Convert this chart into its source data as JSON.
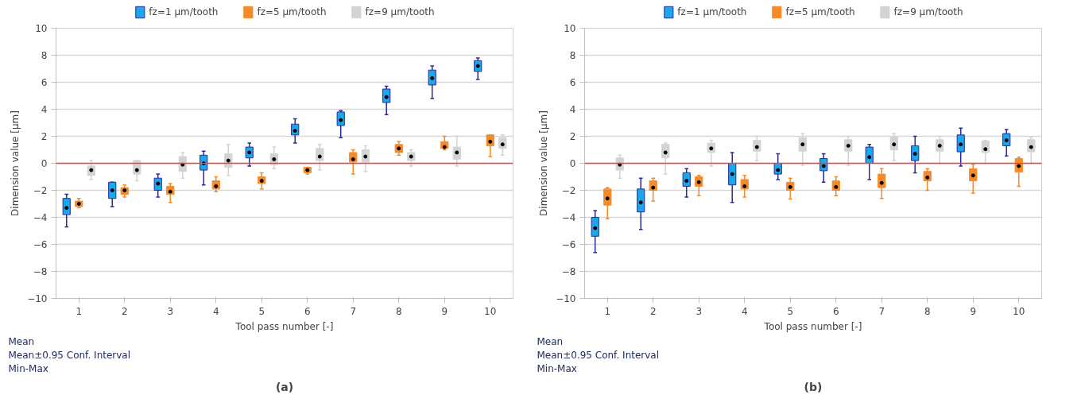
{
  "chart_data": [
    {
      "type": "box",
      "title": "(a)",
      "xlabel": "Tool pass number [-]",
      "ylabel": "Dimension value [µm]",
      "categories": [
        "1",
        "2",
        "3",
        "4",
        "5",
        "6",
        "7",
        "8",
        "9",
        "10"
      ],
      "ylim": [
        -10,
        10
      ],
      "yticks": [
        -10,
        -8,
        -6,
        -4,
        -2,
        0,
        2,
        4,
        6,
        8,
        10
      ],
      "grid": "y",
      "legend": "top",
      "ref_lines": [
        {
          "axis": "y",
          "value": 0,
          "color": "#ff4040"
        }
      ],
      "annotations": [
        "Mean",
        "Mean±0.95 Conf. Interval",
        "Min-Max"
      ],
      "series": [
        {
          "name": "fz=1 µm/tooth",
          "color": "#1aa7ec",
          "boxes": [
            {
              "low": -4.7,
              "q1": -3.8,
              "median": -3.3,
              "q3": -2.6,
              "high": -2.3
            },
            {
              "low": -3.2,
              "q1": -2.6,
              "median": -2.0,
              "q3": -1.4,
              "high": -1.4
            },
            {
              "low": -2.5,
              "q1": -2.0,
              "median": -1.5,
              "q3": -1.1,
              "high": -0.8
            },
            {
              "low": -1.6,
              "q1": -0.5,
              "median": 0,
              "q3": 0.6,
              "high": 0.9
            },
            {
              "low": -0.2,
              "q1": 0.4,
              "median": 0.8,
              "q3": 1.2,
              "high": 1.5
            },
            {
              "low": 1.5,
              "q1": 2.1,
              "median": 2.4,
              "q3": 2.9,
              "high": 3.3
            },
            {
              "low": 1.9,
              "q1": 2.8,
              "median": 3.2,
              "q3": 3.8,
              "high": 3.9
            },
            {
              "low": 3.6,
              "q1": 4.5,
              "median": 4.9,
              "q3": 5.5,
              "high": 5.7
            },
            {
              "low": 4.8,
              "q1": 5.8,
              "median": 6.3,
              "q3": 6.9,
              "high": 7.2
            },
            {
              "low": 6.2,
              "q1": 6.8,
              "median": 7.2,
              "q3": 7.6,
              "high": 7.8
            }
          ]
        },
        {
          "name": "fz=5 µm/tooth",
          "color": "#f58a2a",
          "boxes": [
            {
              "low": -3.3,
              "q1": -3.2,
              "median": -3.0,
              "q3": -2.8,
              "high": -2.6
            },
            {
              "low": -2.5,
              "q1": -2.3,
              "median": -2.0,
              "q3": -1.8,
              "high": -1.6
            },
            {
              "low": -2.9,
              "q1": -2.3,
              "median": -2.1,
              "q3": -1.7,
              "high": -1.5
            },
            {
              "low": -2.1,
              "q1": -1.9,
              "median": -1.7,
              "q3": -1.3,
              "high": -1.0
            },
            {
              "low": -1.9,
              "q1": -1.5,
              "median": -1.3,
              "q3": -1.0,
              "high": -0.7
            },
            {
              "low": -0.8,
              "q1": -0.7,
              "median": -0.5,
              "q3": -0.3,
              "high": -0.3
            },
            {
              "low": -0.8,
              "q1": 0.1,
              "median": 0.3,
              "q3": 0.8,
              "high": 1.0
            },
            {
              "low": 0.6,
              "q1": 0.8,
              "median": 1.1,
              "q3": 1.4,
              "high": 1.6
            },
            {
              "low": 1.0,
              "q1": 1.1,
              "median": 1.2,
              "q3": 1.6,
              "high": 2.0
            },
            {
              "low": 0.5,
              "q1": 1.3,
              "median": 1.6,
              "q3": 2.1,
              "high": 2.1
            }
          ]
        },
        {
          "name": "fz=9 µm/tooth",
          "color": "#d3d3d3",
          "boxes": [
            {
              "low": -1.2,
              "q1": -0.9,
              "median": -0.5,
              "q3": -0.2,
              "high": 0.2
            },
            {
              "low": -1.3,
              "q1": -0.8,
              "median": -0.5,
              "q3": 0.2,
              "high": 0.2
            },
            {
              "low": -1.1,
              "q1": -0.6,
              "median": -0.1,
              "q3": 0.5,
              "high": 0.8
            },
            {
              "low": -0.9,
              "q1": -0.3,
              "median": 0.2,
              "q3": 0.7,
              "high": 1.4
            },
            {
              "low": -0.4,
              "q1": -0.1,
              "median": 0.3,
              "q3": 0.7,
              "high": 1.2
            },
            {
              "low": -0.5,
              "q1": 0.2,
              "median": 0.5,
              "q3": 1.1,
              "high": 1.4
            },
            {
              "low": -0.6,
              "q1": 0.1,
              "median": 0.5,
              "q3": 1.0,
              "high": 1.3
            },
            {
              "low": -0.2,
              "q1": 0.2,
              "median": 0.5,
              "q3": 0.8,
              "high": 1.0
            },
            {
              "low": -0.2,
              "q1": 0.3,
              "median": 0.8,
              "q3": 1.2,
              "high": 2.0
            },
            {
              "low": 0.6,
              "q1": 1.1,
              "median": 1.4,
              "q3": 1.9,
              "high": 2.1
            }
          ]
        }
      ]
    },
    {
      "type": "box",
      "title": "(b)",
      "xlabel": "Tool pass number [-]",
      "ylabel": "Dimension value [µm]",
      "categories": [
        "1",
        "2",
        "3",
        "4",
        "5",
        "6",
        "7",
        "8",
        "9",
        "10"
      ],
      "ylim": [
        -10,
        10
      ],
      "yticks": [
        -10,
        -8,
        -6,
        -4,
        -2,
        0,
        2,
        4,
        6,
        8,
        10
      ],
      "grid": "y",
      "legend": "top",
      "ref_lines": [
        {
          "axis": "y",
          "value": 0,
          "color": "#ff4040"
        }
      ],
      "annotations": [
        "Mean",
        "Mean±0.95 Conf. Interval",
        "Min-Max"
      ],
      "series": [
        {
          "name": "fz=1 µm/tooth",
          "color": "#1aa7ec",
          "boxes": [
            {
              "low": -6.6,
              "q1": -5.4,
              "median": -4.8,
              "q3": -4.0,
              "high": -3.5
            },
            {
              "low": -4.9,
              "q1": -3.6,
              "median": -2.9,
              "q3": -1.9,
              "high": -1.1
            },
            {
              "low": -2.5,
              "q1": -1.7,
              "median": -1.3,
              "q3": -0.7,
              "high": -0.4
            },
            {
              "low": -2.9,
              "q1": -1.6,
              "median": -0.8,
              "q3": 0,
              "high": 0.8
            },
            {
              "low": -1.2,
              "q1": -0.8,
              "median": -0.5,
              "q3": 0,
              "high": 0.7
            },
            {
              "low": -1.4,
              "q1": -0.55,
              "median": -0.2,
              "q3": 0.35,
              "high": 0.7
            },
            {
              "low": -1.2,
              "q1": 0,
              "median": 0.45,
              "q3": 1.2,
              "high": 1.4
            },
            {
              "low": -0.7,
              "q1": 0.2,
              "median": 0.7,
              "q3": 1.3,
              "high": 2.0
            },
            {
              "low": -0.2,
              "q1": 0.85,
              "median": 1.4,
              "q3": 2.1,
              "high": 2.6
            },
            {
              "low": 0.55,
              "q1": 1.3,
              "median": 1.7,
              "q3": 2.2,
              "high": 2.5
            }
          ]
        },
        {
          "name": "fz=5 µm/tooth",
          "color": "#f58a2a",
          "boxes": [
            {
              "low": -4.1,
              "q1": -3.1,
              "median": -2.6,
              "q3": -1.9,
              "high": -1.8
            },
            {
              "low": -2.8,
              "q1": -2.0,
              "median": -1.8,
              "q3": -1.3,
              "high": -1.1
            },
            {
              "low": -2.4,
              "q1": -1.7,
              "median": -1.4,
              "q3": -1.0,
              "high": -0.9
            },
            {
              "low": -2.5,
              "q1": -1.9,
              "median": -1.7,
              "q3": -1.2,
              "high": -0.9
            },
            {
              "low": -2.65,
              "q1": -2.0,
              "median": -1.75,
              "q3": -1.4,
              "high": -1.1
            },
            {
              "low": -2.4,
              "q1": -2.0,
              "median": -1.75,
              "q3": -1.3,
              "high": -1.0
            },
            {
              "low": -2.6,
              "q1": -1.8,
              "median": -1.45,
              "q3": -0.8,
              "high": -0.4
            },
            {
              "low": -2.0,
              "q1": -1.3,
              "median": -1.05,
              "q3": -0.6,
              "high": -0.4
            },
            {
              "low": -2.2,
              "q1": -1.3,
              "median": -0.9,
              "q3": -0.4,
              "high": -0.1
            },
            {
              "low": -1.7,
              "q1": -0.65,
              "median": -0.2,
              "q3": 0.35,
              "high": 0.45
            }
          ]
        },
        {
          "name": "fz=9 µm/tooth",
          "color": "#d3d3d3",
          "boxes": [
            {
              "low": -1.1,
              "q1": -0.5,
              "median": -0.1,
              "q3": 0.4,
              "high": 0.6
            },
            {
              "low": -0.8,
              "q1": 0.4,
              "median": 0.8,
              "q3": 1.4,
              "high": 1.5
            },
            {
              "low": -0.2,
              "q1": 0.8,
              "median": 1.1,
              "q3": 1.5,
              "high": 1.7
            },
            {
              "low": 0.2,
              "q1": 0.9,
              "median": 1.2,
              "q3": 1.7,
              "high": 2.0
            },
            {
              "low": -0.15,
              "q1": 0.9,
              "median": 1.4,
              "q3": 1.9,
              "high": 2.2
            },
            {
              "low": -0.15,
              "q1": 0.9,
              "median": 1.3,
              "q3": 1.75,
              "high": 2.0
            },
            {
              "low": 0.2,
              "q1": 1.0,
              "median": 1.4,
              "q3": 1.95,
              "high": 2.2
            },
            {
              "low": 0.0,
              "q1": 0.9,
              "median": 1.3,
              "q3": 1.75,
              "high": 2.0
            },
            {
              "low": 0.0,
              "q1": 0.8,
              "median": 1.05,
              "q3": 1.65,
              "high": 1.7
            },
            {
              "low": 0.0,
              "q1": 0.85,
              "median": 1.2,
              "q3": 1.75,
              "high": 1.9
            }
          ]
        }
      ]
    }
  ]
}
